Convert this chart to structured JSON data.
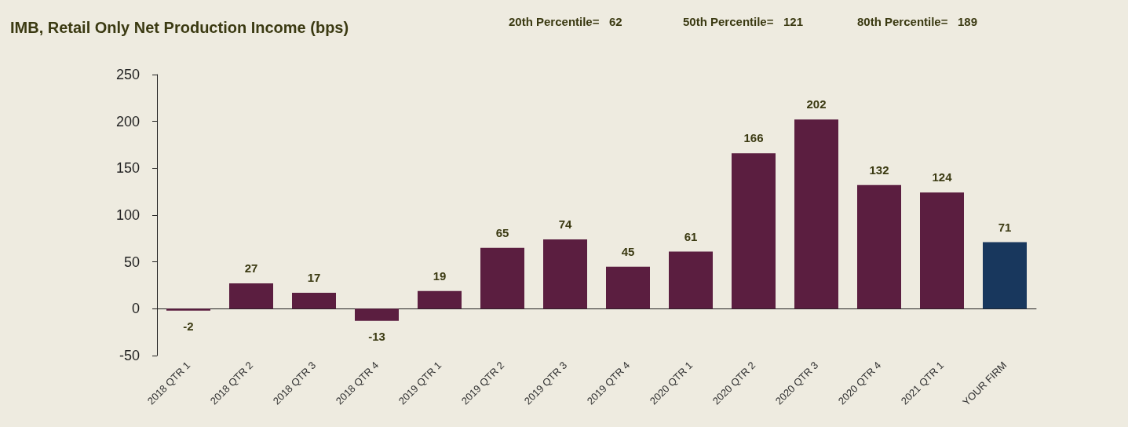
{
  "chart_data": {
    "type": "bar",
    "title": "IMB, Retail Only Net Production Income (bps)",
    "annotations": [
      "20th Percentile=   62",
      "50th Percentile=   121",
      "80th Percentile=   189"
    ],
    "categories": [
      "2018 QTR 1",
      "2018 QTR 2",
      "2018 QTR 3",
      "2018 QTR 4",
      "2019 QTR 1",
      "2019 QTR 2",
      "2019 QTR 3",
      "2019 QTR 4",
      "2020 QTR 1",
      "2020 QTR 2",
      "2020 QTR 3",
      "2020 QTR 4",
      "2021 QTR 1",
      "YOUR FIRM"
    ],
    "values": [
      -2,
      27,
      17,
      -13,
      19,
      65,
      74,
      45,
      61,
      166,
      202,
      132,
      124,
      71
    ],
    "colors": [
      "#5b1e40",
      "#5b1e40",
      "#5b1e40",
      "#5b1e40",
      "#5b1e40",
      "#5b1e40",
      "#5b1e40",
      "#5b1e40",
      "#5b1e40",
      "#5b1e40",
      "#5b1e40",
      "#5b1e40",
      "#5b1e40",
      "#18375d"
    ],
    "ylim": [
      -50,
      250
    ],
    "yticks": [
      -50,
      0,
      50,
      100,
      150,
      200,
      250
    ],
    "data_labels": true
  }
}
